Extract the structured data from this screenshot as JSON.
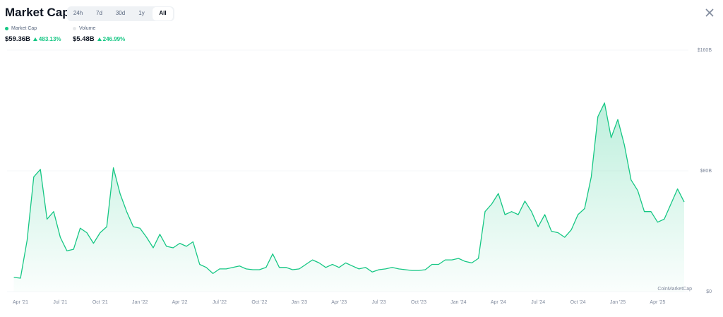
{
  "header": {
    "title": "Market Cap",
    "tabs": [
      "24h",
      "7d",
      "30d",
      "1y",
      "All"
    ],
    "active_tab": 4
  },
  "stats": [
    {
      "name": "Market Cap",
      "value": "$59.36B",
      "change": "483.13%",
      "color": "#16c784"
    },
    {
      "name": "Volume",
      "value": "$5.48B",
      "change": "246.99%",
      "color": "#e6e8ea"
    }
  ],
  "chart_data": {
    "type": "area",
    "categories": [
      null,
      "Apr '21",
      null,
      null,
      null,
      null,
      null,
      "Jul '21",
      null,
      null,
      null,
      null,
      null,
      "Oct '21",
      null,
      null,
      null,
      null,
      null,
      "Jan '22",
      null,
      null,
      null,
      null,
      null,
      "Apr '22",
      null,
      null,
      null,
      null,
      null,
      "Jul '22",
      null,
      null,
      null,
      null,
      null,
      "Oct '22",
      null,
      null,
      null,
      null,
      null,
      "Jan '23",
      null,
      null,
      null,
      null,
      null,
      "Apr '23",
      null,
      null,
      null,
      null,
      null,
      "Jul '23",
      null,
      null,
      null,
      null,
      null,
      "Oct '23",
      null,
      null,
      null,
      null,
      null,
      "Jan '24",
      null,
      null,
      null,
      null,
      null,
      "Apr '24",
      null,
      null,
      null,
      null,
      null,
      "Jul '24",
      null,
      null,
      null,
      null,
      null,
      "Oct '24",
      null,
      null,
      null,
      null,
      null,
      "Jan '25",
      null,
      null,
      null,
      null,
      null,
      "Apr '25",
      null,
      null,
      null,
      null
    ],
    "series": [
      {
        "name": "Market Cap",
        "color": "#16c784",
        "values": [
          9.4,
          8.9,
          34,
          76,
          81,
          48,
          53,
          36,
          27,
          28,
          42,
          39,
          32,
          39,
          43,
          82,
          65,
          53,
          43,
          42,
          36,
          29,
          38,
          30,
          29,
          32,
          30,
          33,
          18,
          16,
          12,
          15,
          15,
          16,
          17,
          15,
          14.5,
          14.5,
          16,
          25,
          16,
          16,
          14.5,
          15,
          18,
          21,
          19,
          16,
          18,
          16,
          19,
          17,
          15,
          16,
          13,
          14.5,
          15,
          16,
          15,
          14.5,
          14,
          14,
          14.5,
          18,
          18,
          21,
          21,
          22,
          20,
          19,
          22,
          53,
          58,
          65,
          51,
          53,
          51,
          60,
          53,
          43,
          51,
          40,
          39,
          36,
          41,
          51,
          55,
          76,
          116,
          125,
          102,
          114,
          97,
          74,
          67,
          53,
          53,
          46,
          48,
          58,
          68,
          59.36
        ]
      }
    ],
    "ylim": [
      0,
      160
    ],
    "yticks": [
      {
        "value": 0,
        "label": "$0"
      },
      {
        "value": 80,
        "label": "$80B"
      },
      {
        "value": 160,
        "label": "$160B"
      }
    ],
    "grid": true,
    "watermark": "CoinMarketCap"
  }
}
